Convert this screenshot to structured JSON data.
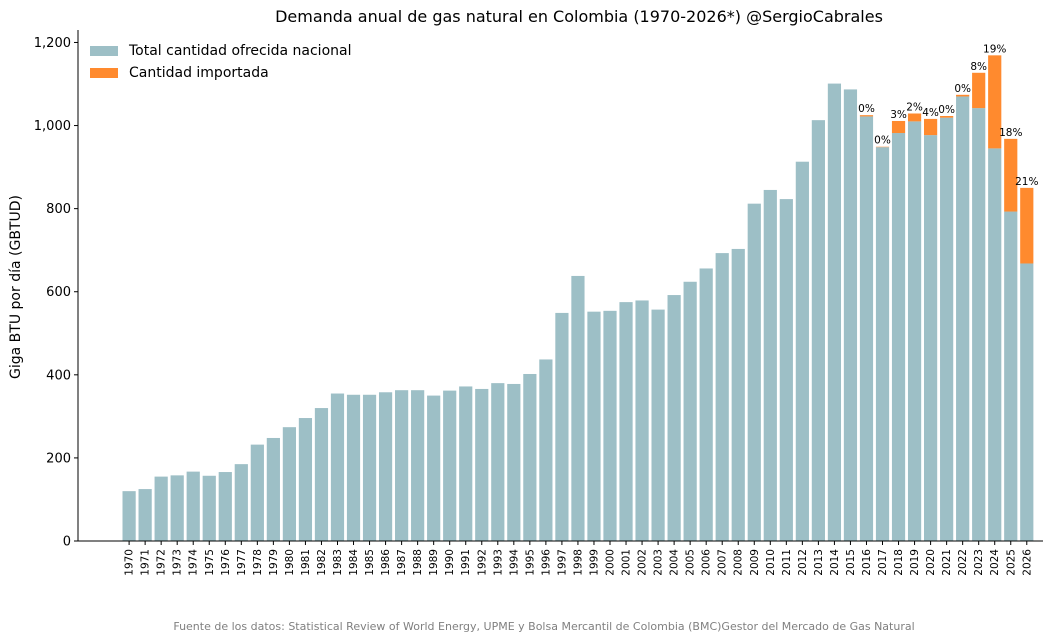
{
  "colors": {
    "national": "#9dbfc6",
    "imported": "#ff8a2e",
    "axis": "#000000",
    "source_text": "#808080"
  },
  "chart_data": {
    "type": "bar",
    "stacked": true,
    "title": "Demanda anual de gas natural en Colombia (1970-2026*) @SergioCabrales",
    "xlabel": "",
    "ylabel": "Giga BTU por día (GBTUD)",
    "ylim": [
      0,
      1230
    ],
    "yticks": [
      0,
      200,
      400,
      600,
      800,
      1000,
      1200
    ],
    "ytick_labels": [
      "0",
      "200",
      "400",
      "600",
      "800",
      "1,000",
      "1,200"
    ],
    "grid": false,
    "legend_position": "top-left",
    "categories": [
      "1970",
      "1971",
      "1972",
      "1973",
      "1974",
      "1975",
      "1976",
      "1977",
      "1978",
      "1979",
      "1980",
      "1981",
      "1982",
      "1983",
      "1984",
      "1985",
      "1986",
      "1987",
      "1988",
      "1989",
      "1990",
      "1991",
      "1992",
      "1993",
      "1994",
      "1995",
      "1996",
      "1997",
      "1998",
      "1999",
      "2000",
      "2001",
      "2002",
      "2003",
      "2004",
      "2005",
      "2006",
      "2007",
      "2008",
      "2009",
      "2010",
      "2011",
      "2012",
      "2013",
      "2014",
      "2015",
      "2016",
      "2017",
      "2018",
      "2019",
      "2020",
      "2021",
      "2022",
      "2023",
      "2024",
      "2025",
      "2026"
    ],
    "series": [
      {
        "name": "Total cantidad ofrecida nacional",
        "color": "#9dbfc6",
        "values": [
          120,
          125,
          155,
          158,
          167,
          157,
          166,
          185,
          232,
          248,
          274,
          296,
          320,
          355,
          352,
          352,
          358,
          363,
          363,
          350,
          362,
          372,
          366,
          380,
          378,
          402,
          437,
          549,
          638,
          552,
          554,
          575,
          579,
          557,
          592,
          624,
          656,
          693,
          703,
          812,
          845,
          823,
          913,
          1013,
          1101,
          1087,
          1022,
          948,
          982,
          1010,
          977,
          1019,
          1070,
          1042,
          945,
          793,
          668
        ]
      },
      {
        "name": "Cantidad importada",
        "color": "#ff8a2e",
        "values": [
          0,
          0,
          0,
          0,
          0,
          0,
          0,
          0,
          0,
          0,
          0,
          0,
          0,
          0,
          0,
          0,
          0,
          0,
          0,
          0,
          0,
          0,
          0,
          0,
          0,
          0,
          0,
          0,
          0,
          0,
          0,
          0,
          0,
          0,
          0,
          0,
          0,
          0,
          0,
          0,
          0,
          0,
          0,
          0,
          0,
          0,
          3,
          1,
          29,
          19,
          39,
          4,
          4,
          85,
          224,
          175,
          182
        ]
      }
    ],
    "annotations": [
      {
        "year": "2016",
        "label": "0%"
      },
      {
        "year": "2017",
        "label": "0%"
      },
      {
        "year": "2018",
        "label": "3%"
      },
      {
        "year": "2019",
        "label": "2%"
      },
      {
        "year": "2020",
        "label": "4%"
      },
      {
        "year": "2021",
        "label": "0%"
      },
      {
        "year": "2022",
        "label": "0%"
      },
      {
        "year": "2023",
        "label": "8%"
      },
      {
        "year": "2024",
        "label": "19%"
      },
      {
        "year": "2025",
        "label": "18%"
      },
      {
        "year": "2026",
        "label": "21%"
      }
    ],
    "source": "Fuente de los datos: Statistical Review of World Energy, UPME y Bolsa Mercantil de Colombia (BMC)Gestor del Mercado de Gas Natural"
  }
}
